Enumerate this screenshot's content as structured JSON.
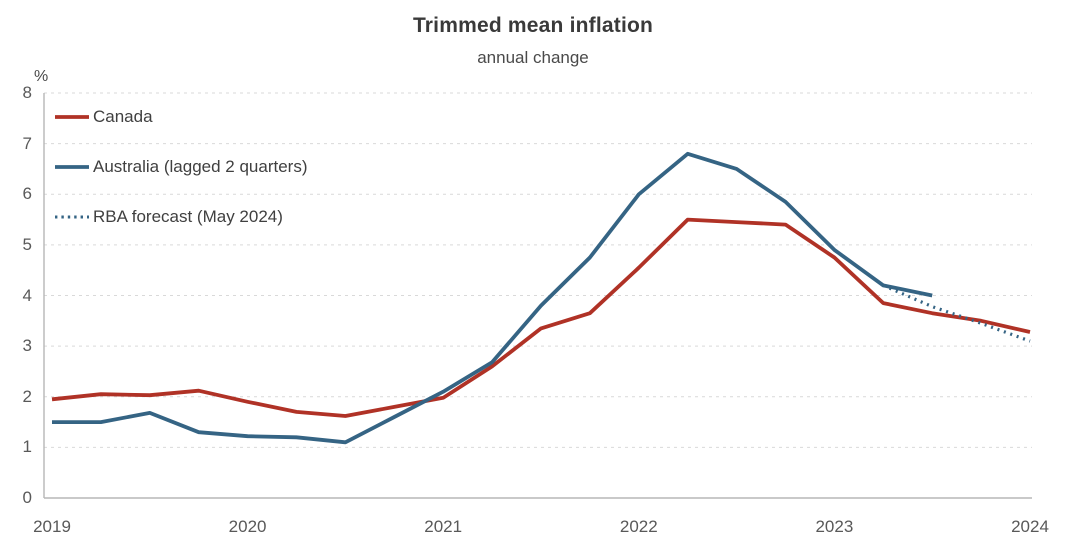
{
  "chart_data": {
    "type": "line",
    "title": "Trimmed mean inflation",
    "subtitle": "annual change",
    "unit_label": "%",
    "xlim": [
      2019,
      2024
    ],
    "ylim": [
      0,
      8
    ],
    "y_ticks": [
      0,
      1,
      2,
      3,
      4,
      5,
      6,
      7,
      8
    ],
    "x_ticks": [
      {
        "label": "2019",
        "year": 2019
      },
      {
        "label": "2020",
        "year": 2020
      },
      {
        "label": "2021",
        "year": 2021
      },
      {
        "label": "2022",
        "year": 2022
      },
      {
        "label": "2023",
        "year": 2023
      },
      {
        "label": "2024",
        "year": 2024
      }
    ],
    "grid": "horizontal-dashed",
    "legend_position": "top-left",
    "legend": [
      {
        "label": "Canada",
        "color": "#b03226",
        "style": "solid"
      },
      {
        "label": "Australia (lagged 2 quarters)",
        "color": "#356484",
        "style": "solid"
      },
      {
        "label": "RBA forecast (May 2024)",
        "color": "#356484",
        "style": "dotted"
      }
    ],
    "series": [
      {
        "name": "Canada",
        "key": "canada",
        "color": "#b03226",
        "style": "solid",
        "x": [
          2019.0,
          2019.25,
          2019.5,
          2019.75,
          2020.0,
          2020.25,
          2020.5,
          2020.75,
          2021.0,
          2021.25,
          2021.5,
          2021.75,
          2022.0,
          2022.25,
          2022.5,
          2022.75,
          2023.0,
          2023.25,
          2023.5,
          2023.75,
          2024.0
        ],
        "values": [
          1.95,
          2.05,
          2.03,
          2.12,
          1.9,
          1.7,
          1.62,
          1.8,
          1.98,
          2.6,
          3.35,
          3.65,
          4.55,
          5.5,
          5.45,
          5.4,
          4.75,
          3.85,
          3.65,
          3.5,
          3.28
        ]
      },
      {
        "name": "RBA forecast (May 2024)",
        "key": "rba-forecast",
        "color": "#356484",
        "style": "dotted",
        "x": [
          2023.25,
          2023.5,
          2023.75,
          2024.0
        ],
        "values": [
          4.2,
          3.78,
          3.45,
          3.1
        ]
      },
      {
        "name": "Australia (lagged 2 quarters)",
        "key": "australia",
        "color": "#356484",
        "style": "solid",
        "x": [
          2019.0,
          2019.25,
          2019.5,
          2019.75,
          2020.0,
          2020.25,
          2020.5,
          2020.75,
          2021.0,
          2021.25,
          2021.5,
          2021.75,
          2022.0,
          2022.25,
          2022.5,
          2022.75,
          2023.0,
          2023.25,
          2023.5
        ],
        "values": [
          1.5,
          1.5,
          1.68,
          1.3,
          1.22,
          1.2,
          1.1,
          1.6,
          2.1,
          2.68,
          3.8,
          4.75,
          6.0,
          6.8,
          6.5,
          5.85,
          4.9,
          4.2,
          4.0
        ]
      }
    ],
    "style_colors": {
      "gridline": "#d9d9d9",
      "axis_line": "#b7b7b7",
      "tick_text": "#595959",
      "title_text": "#3a3a3a"
    }
  }
}
